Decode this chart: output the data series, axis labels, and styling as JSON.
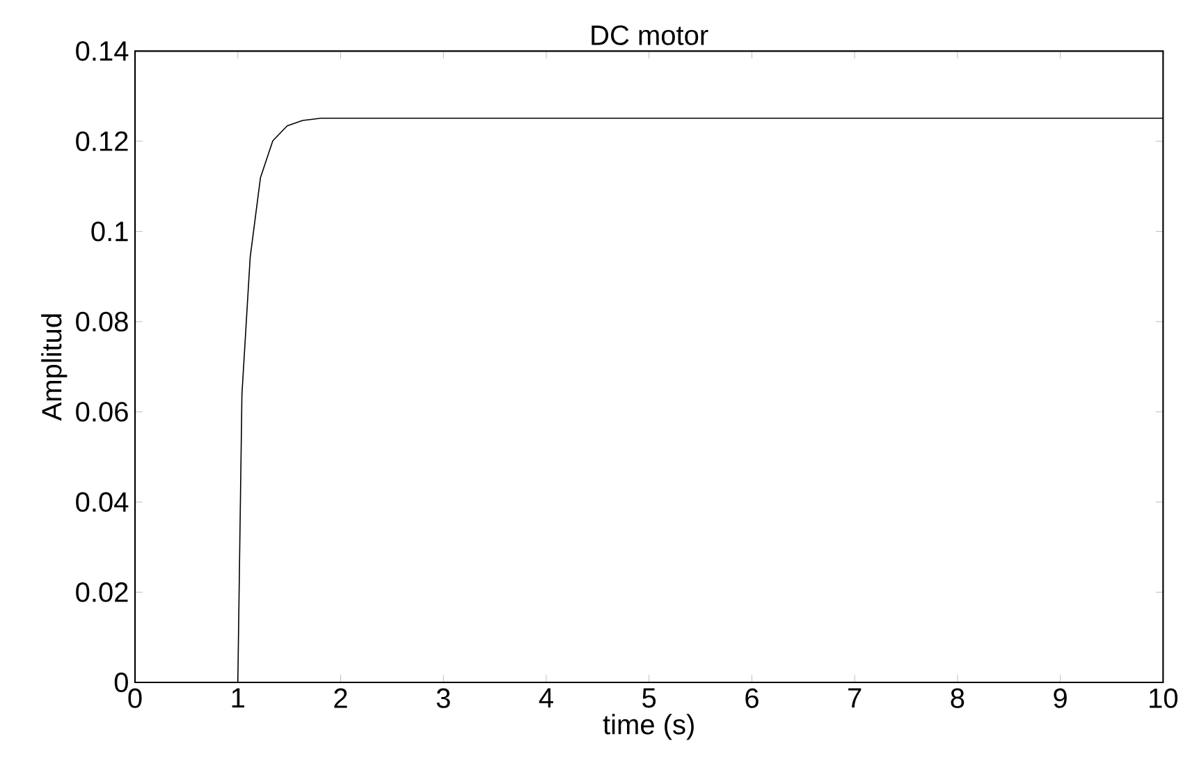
{
  "chart_data": {
    "type": "line",
    "title": "DC motor",
    "xlabel": "time (s)",
    "ylabel": "Amplitud",
    "x": [
      0,
      1,
      1.04,
      1.12,
      1.22,
      1.34,
      1.48,
      1.63,
      1.81,
      10
    ],
    "values": [
      0,
      0,
      0.0639,
      0.0942,
      0.1119,
      0.1201,
      0.1234,
      0.1246,
      0.1251,
      0.1251
    ],
    "color": "#000000",
    "line_style": "solid",
    "xlim": [
      0,
      10
    ],
    "ylim": [
      0,
      0.14
    ],
    "xticks": [
      0,
      1,
      2,
      3,
      4,
      5,
      6,
      7,
      8,
      9,
      10
    ],
    "yticks": [
      0,
      0.02,
      0.04,
      0.06,
      0.08,
      0.1,
      0.12,
      0.14
    ]
  }
}
